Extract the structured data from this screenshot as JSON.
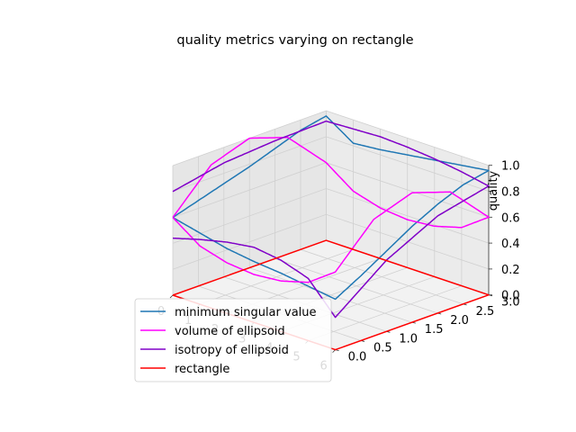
{
  "chart_data": {
    "type": "line",
    "projection": "3d",
    "title": "quality metrics varying on rectangle",
    "xlabel": "",
    "ylabel": "",
    "zlabel": "quality",
    "xlim": [
      0,
      6
    ],
    "ylim": [
      0,
      3
    ],
    "zlim": [
      0,
      1
    ],
    "x_ticks": [
      "0",
      "1",
      "2",
      "3",
      "4",
      "5",
      "6"
    ],
    "y_ticks": [
      "0.0",
      "0.5",
      "1.0",
      "1.5",
      "2.0",
      "2.5",
      "3.0"
    ],
    "z_ticks": [
      "0.0",
      "0.2",
      "0.4",
      "0.6",
      "0.8",
      "1.0"
    ],
    "grid": true,
    "legend_position": "lower-left",
    "path_parameter": "s",
    "path_corners": [
      [
        0,
        0
      ],
      [
        6,
        0
      ],
      [
        6,
        3
      ],
      [
        0,
        3
      ],
      [
        0,
        0
      ]
    ],
    "series": [
      {
        "name": "minimum singular value",
        "color": "#1f77b4",
        "s": [
          0,
          1,
          2,
          3,
          4,
          5,
          6,
          6.5,
          7,
          7.5,
          8,
          8.5,
          9,
          10,
          11,
          12,
          13,
          14,
          15,
          15.5,
          16,
          16.5,
          17,
          17.5,
          18
        ],
        "z": [
          0.6,
          0.55,
          0.5,
          0.47,
          0.45,
          0.42,
          0.39,
          0.5,
          0.62,
          0.74,
          0.84,
          0.92,
          0.96,
          0.93,
          0.9,
          0.87,
          0.84,
          0.82,
          0.96,
          0.92,
          0.85,
          0.78,
          0.72,
          0.66,
          0.6
        ]
      },
      {
        "name": "volume of ellipsoid",
        "color": "#ff00ff",
        "s": [
          0,
          1,
          2,
          3,
          4,
          5,
          6,
          6.75,
          7.5,
          8.25,
          9,
          10,
          11,
          12,
          13,
          14,
          15,
          15.75,
          16.5,
          17.25,
          18
        ],
        "z": [
          0.6,
          0.45,
          0.39,
          0.37,
          0.39,
          0.45,
          0.6,
          0.9,
          1.0,
          0.9,
          0.6,
          0.45,
          0.39,
          0.37,
          0.39,
          0.45,
          0.6,
          0.9,
          1.0,
          0.9,
          0.6
        ]
      },
      {
        "name": "isotropy of ellipsoid",
        "color": "#8000c8",
        "s": [
          0,
          1,
          2,
          3,
          4,
          5,
          6,
          7,
          8,
          9,
          10,
          11,
          12,
          13,
          14,
          15,
          16,
          17,
          18
        ],
        "z": [
          0.44,
          0.5,
          0.55,
          0.58,
          0.55,
          0.48,
          0.25,
          0.55,
          0.75,
          0.84,
          0.88,
          0.91,
          0.93,
          0.94,
          0.93,
          0.92,
          0.91,
          0.88,
          0.8
        ]
      },
      {
        "name": "rectangle",
        "color": "#ff0000",
        "s": [
          0,
          6,
          9,
          15,
          18
        ],
        "z": [
          0,
          0,
          0,
          0,
          0
        ]
      }
    ]
  }
}
